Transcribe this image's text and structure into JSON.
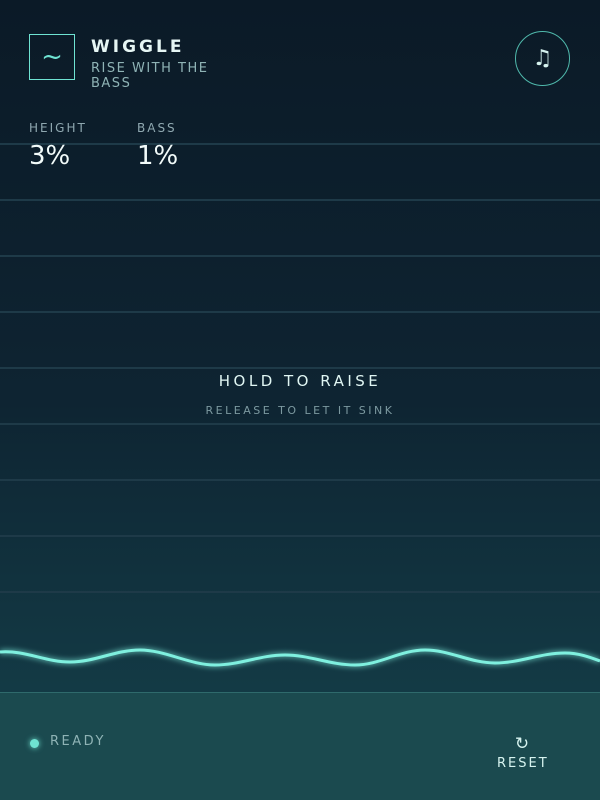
{
  "header": {
    "logo_icon": "~",
    "title": "WIGGLE",
    "subtitle": "RISE WITH THE BASS",
    "music_icon": "♫"
  },
  "stats": [
    {
      "label": "HEIGHT",
      "value": "3%"
    },
    {
      "label": "BASS",
      "value": "1%"
    }
  ],
  "prompt": {
    "title": "HOLD TO RAISE",
    "subtitle": "RELEASE TO LET IT SINK"
  },
  "footer": {
    "status": "READY",
    "reset_icon": "↻",
    "reset": "RESET"
  }
}
